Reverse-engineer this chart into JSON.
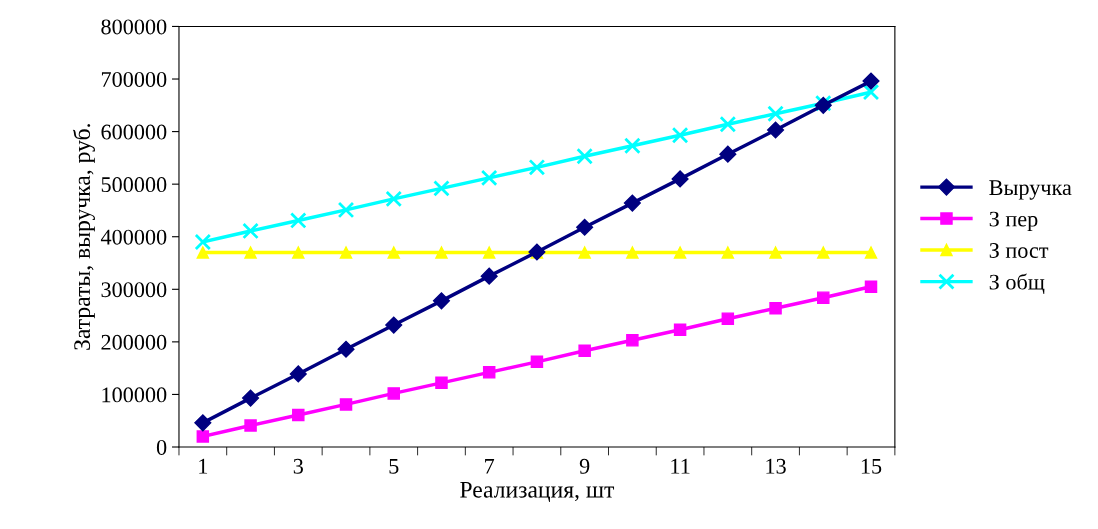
{
  "chart_data": {
    "type": "line",
    "xlabel": "Реализация, шт",
    "ylabel": "Затраты, выручка, руб.",
    "categories": [
      "1",
      null,
      "3",
      null,
      "5",
      null,
      "7",
      null,
      "9",
      null,
      "11",
      null,
      "13",
      null,
      "15"
    ],
    "series": [
      {
        "name": "Выручка",
        "color": "#000080",
        "marker": "diamond",
        "values": [
          46000,
          93000,
          139000,
          186000,
          232000,
          278000,
          325000,
          371000,
          418000,
          464000,
          510000,
          557000,
          603000,
          650000,
          696000
        ]
      },
      {
        "name": "З пер",
        "color": "#ff00ff",
        "marker": "square",
        "values": [
          20000,
          41000,
          61000,
          81000,
          102000,
          122000,
          142000,
          162000,
          183000,
          203000,
          223000,
          244000,
          264000,
          284000,
          305000
        ]
      },
      {
        "name": "З пост",
        "color": "#ffff00",
        "marker": "triangle",
        "values": [
          370000,
          370000,
          370000,
          370000,
          370000,
          370000,
          370000,
          370000,
          370000,
          370000,
          370000,
          370000,
          370000,
          370000,
          370000
        ]
      },
      {
        "name": "З общ",
        "color": "#00ffff",
        "marker": "cross",
        "values": [
          390000,
          411000,
          431000,
          451000,
          472000,
          492000,
          512000,
          532000,
          553000,
          573000,
          593000,
          614000,
          634000,
          654000,
          675000
        ]
      }
    ],
    "ylim": [
      0,
      800000
    ],
    "yticks": [
      0,
      100000,
      200000,
      300000,
      400000,
      500000,
      600000,
      700000,
      800000
    ],
    "grid": false,
    "legend": "right"
  }
}
